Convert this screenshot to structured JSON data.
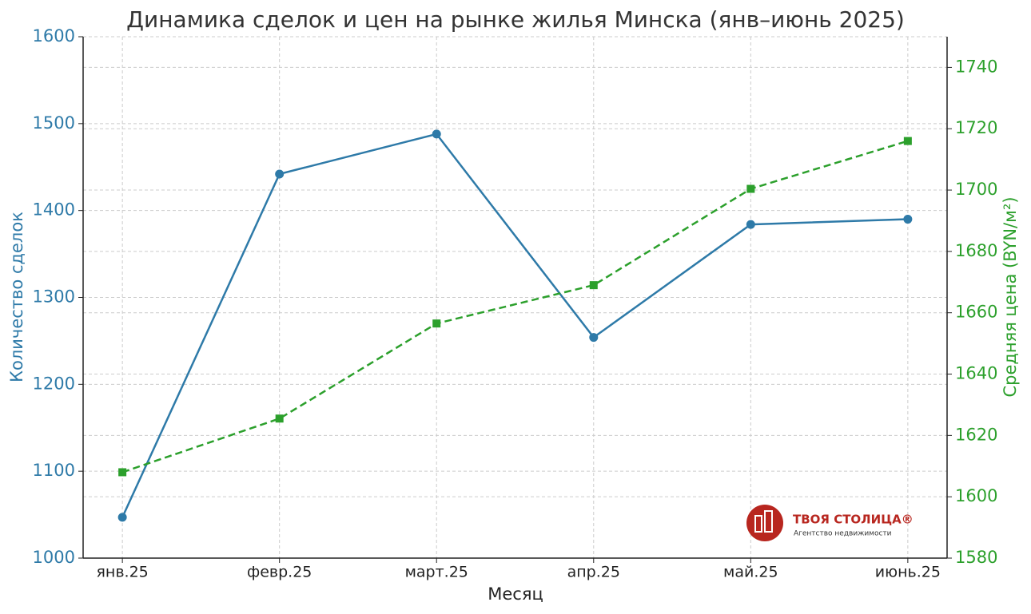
{
  "chart_data": {
    "type": "line",
    "title": "Динамика сделок и цен на рынке жилья Минска (янв–июнь 2025)",
    "xlabel": "Месяц",
    "ylabel": "Количество сделок",
    "y2label": "Средняя цена (BYN/м²)",
    "categories": [
      "янв.25",
      "февр.25",
      "март.25",
      "апр.25",
      "май.25",
      "июнь.25"
    ],
    "series": [
      {
        "color": "#2e7aa8",
        "marker": "circle",
        "linestyle": "solid",
        "values": [
          1047,
          1442,
          1488,
          1254,
          1384,
          1390
        ]
      },
      {
        "color": "#2ca02c",
        "marker": "square",
        "linestyle": "dashed",
        "axis": "y2",
        "values": [
          1608,
          1625.5,
          1656.5,
          1669,
          1700.4,
          1716
        ]
      }
    ],
    "ylim": [
      1000,
      1600
    ],
    "yticks": [
      1000,
      1100,
      1200,
      1300,
      1400,
      1500,
      1600
    ],
    "y2lim": [
      1580,
      1750
    ],
    "y2ticks": [
      1580,
      1600,
      1620,
      1640,
      1660,
      1680,
      1700,
      1720,
      1740
    ],
    "grid": true,
    "watermark": {
      "title": "ТВОЯ СТОЛИЦА®",
      "subtitle": "Агентство недвижимости"
    }
  }
}
